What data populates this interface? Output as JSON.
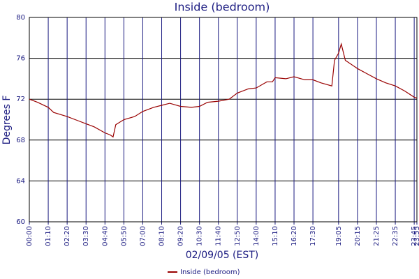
{
  "chart_data": {
    "type": "line",
    "title": "Inside (bedroom)",
    "x_label": "02/09/05 (EST)",
    "y_label": "Degrees F",
    "x": [
      0,
      30,
      70,
      90,
      140,
      180,
      210,
      240,
      280,
      300,
      310,
      320,
      350,
      390,
      420,
      460,
      490,
      520,
      560,
      600,
      630,
      660,
      700,
      740,
      770,
      810,
      840,
      880,
      900,
      910,
      950,
      980,
      1020,
      1050,
      1080,
      1120,
      1130,
      1145,
      1155,
      1170,
      1215,
      1250,
      1285,
      1320,
      1355,
      1390,
      1425,
      1435
    ],
    "series": [
      {
        "name": "Inside (bedroom)",
        "color": "#990000",
        "values": [
          72.0,
          71.7,
          71.2,
          70.7,
          70.3,
          69.9,
          69.6,
          69.3,
          68.7,
          68.5,
          68.3,
          69.5,
          70.0,
          70.3,
          70.8,
          71.2,
          71.4,
          71.6,
          71.3,
          71.2,
          71.3,
          71.7,
          71.8,
          72.0,
          72.6,
          73.0,
          73.1,
          73.7,
          73.7,
          74.1,
          74.0,
          74.2,
          73.9,
          73.9,
          73.6,
          73.3,
          75.8,
          76.5,
          77.4,
          75.8,
          75.0,
          74.5,
          74.0,
          73.6,
          73.3,
          72.8,
          72.2,
          72.1
        ]
      }
    ],
    "xlim": [
      0,
      1435
    ],
    "xticks": [
      {
        "value": 0,
        "label": "00:00"
      },
      {
        "value": 70,
        "label": "01:10"
      },
      {
        "value": 140,
        "label": "02:20"
      },
      {
        "value": 210,
        "label": "03:30"
      },
      {
        "value": 280,
        "label": "04:40"
      },
      {
        "value": 350,
        "label": "05:50"
      },
      {
        "value": 420,
        "label": "07:00"
      },
      {
        "value": 490,
        "label": "08:10"
      },
      {
        "value": 560,
        "label": "09:20"
      },
      {
        "value": 630,
        "label": "10:30"
      },
      {
        "value": 700,
        "label": "11:40"
      },
      {
        "value": 770,
        "label": "12:50"
      },
      {
        "value": 840,
        "label": "14:00"
      },
      {
        "value": 910,
        "label": "15:10"
      },
      {
        "value": 980,
        "label": "16:20"
      },
      {
        "value": 1050,
        "label": "17:30"
      },
      {
        "value": 1145,
        "label": "19:05"
      },
      {
        "value": 1215,
        "label": "20:15"
      },
      {
        "value": 1285,
        "label": "21:25"
      },
      {
        "value": 1355,
        "label": "22:35"
      },
      {
        "value": 1425,
        "label": "23:45"
      },
      {
        "value": 1435,
        "label": "23:55"
      }
    ],
    "ylim": [
      60,
      80
    ],
    "yticks": [
      60,
      64,
      68,
      72,
      76,
      80
    ],
    "grid": true,
    "legend": "bottom"
  }
}
